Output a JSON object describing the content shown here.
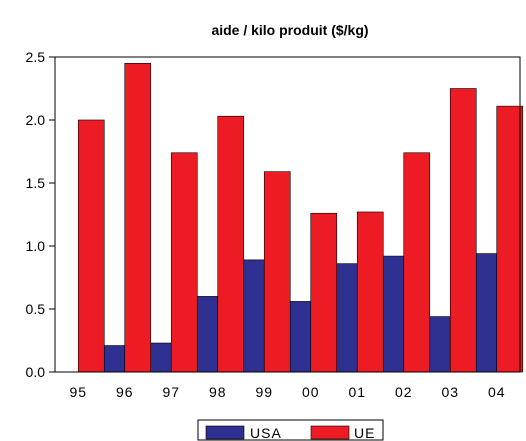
{
  "chart_data": {
    "type": "bar",
    "title": "aide / kilo produit ($/kg)",
    "xlabel": "",
    "ylabel": "",
    "categories": [
      "95",
      "96",
      "97",
      "98",
      "99",
      "00",
      "01",
      "02",
      "03",
      "04"
    ],
    "series": [
      {
        "name": "USA",
        "color": "#2e3192",
        "values": [
          0,
          0.21,
          0.23,
          0.6,
          0.89,
          0.56,
          0.86,
          0.92,
          0.44,
          0.94
        ]
      },
      {
        "name": "UE",
        "color": "#ed1c24",
        "values": [
          2.0,
          2.45,
          1.74,
          2.03,
          1.59,
          1.26,
          1.27,
          1.74,
          2.25,
          2.11
        ]
      }
    ],
    "ylim": [
      0,
      2.5
    ],
    "yticks": [
      "0.0",
      "0.5",
      "1.0",
      "1.5",
      "2.0",
      "2.5"
    ],
    "grid": false,
    "legend": "bottom-center"
  }
}
